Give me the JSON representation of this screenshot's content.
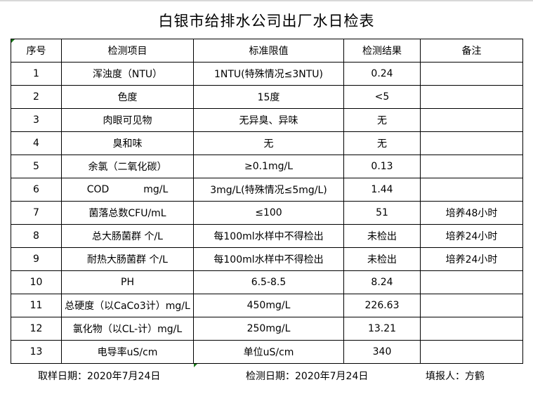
{
  "title": "白银市给排水公司出厂水日检表",
  "headers": [
    "序号",
    "检测项目",
    "标准限值",
    "检测结果",
    "备注"
  ],
  "rows": [
    [
      "1",
      "浑浊度（NTU）",
      "1NTU(特殊情况≤3NTU)",
      "0.24",
      ""
    ],
    [
      "2",
      "色度",
      "15度",
      "<5",
      ""
    ],
    [
      "3",
      "肉眼可见物",
      "无异臭、异味",
      "无",
      ""
    ],
    [
      "4",
      "臭和味",
      "无",
      "无",
      ""
    ],
    [
      "5",
      "余氯（二氧化碳）",
      "≥0.1mg/L",
      "0.13",
      ""
    ],
    [
      "6",
      "COD           mg/L",
      "3mg/L(特殊情况≤5mg/L)",
      "1.44",
      ""
    ],
    [
      "7",
      "菌落总数CFU/mL",
      "≤100",
      "51",
      "培养48小时"
    ],
    [
      "8",
      "总大肠菌群 个/L",
      "每100ml水样中不得检出",
      "未检出",
      "培养24小时"
    ],
    [
      "9",
      "耐热大肠菌群 个/L",
      "每100ml水样中不得检出",
      "未检出",
      "培养24小时"
    ],
    [
      "10",
      "PH",
      "6.5-8.5",
      "8.24",
      ""
    ],
    [
      "11",
      "总硬度（以CaCo3计）mg/L",
      "450mg/L",
      "226.63",
      ""
    ],
    [
      "12",
      "氯化物（以CL-计）mg/L",
      "250mg/L",
      "13.21",
      ""
    ],
    [
      "13",
      "电导率uS/cm",
      "单位uS/cm",
      "340",
      ""
    ]
  ],
  "footer": {
    "sampling_date": "取样日期：2020年7月24日",
    "test_date": "检测日期：2020年7月24日",
    "reporter": "填报人：方鹤"
  }
}
